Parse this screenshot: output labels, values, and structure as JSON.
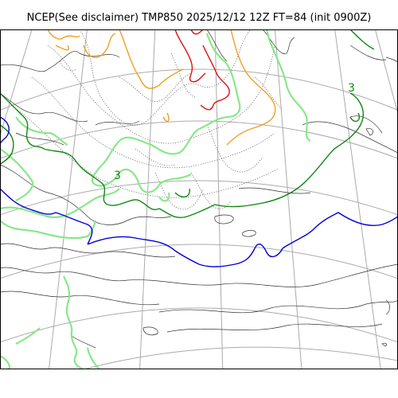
{
  "title": "NCEP(See disclaimer) TMP850 2025/12/12 12Z FT=84 (init 0900Z)",
  "contour_labels": {
    "green_a": "3",
    "green_b": "3"
  },
  "colors": {
    "red": "#dd1111",
    "orange": "#f0a020",
    "light_green": "#88e888",
    "dark_green": "#118811",
    "blue": "#0000dd",
    "grid": "#aaaaaa",
    "coast": "#333333"
  }
}
